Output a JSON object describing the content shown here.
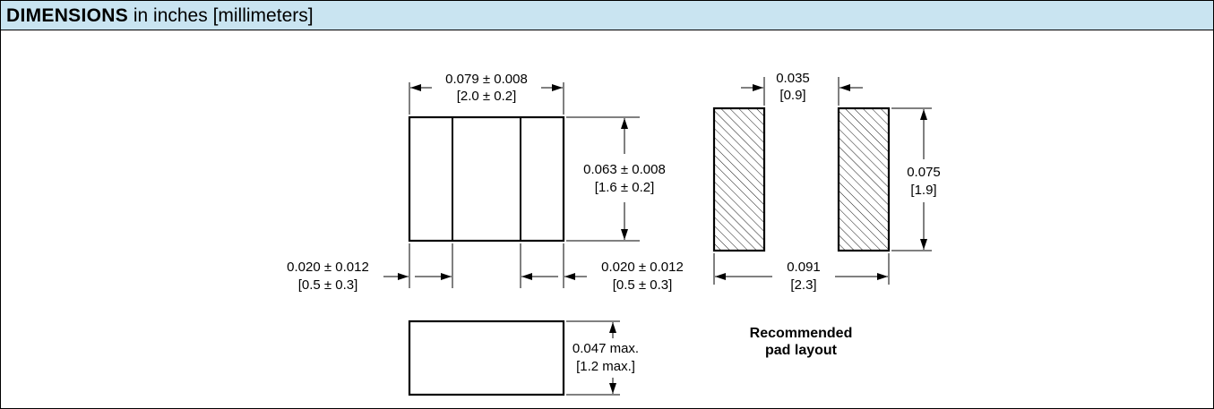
{
  "header": {
    "title_bold": "DIMENSIONS",
    "title_rest": " in inches [millimeters]"
  },
  "component": {
    "width": {
      "in": "0.079 ± 0.008",
      "mm": "[2.0 ± 0.2]"
    },
    "height": {
      "in": "0.063 ± 0.008",
      "mm": "[1.6 ± 0.2]"
    },
    "terminal_left": {
      "in": "0.020 ± 0.012",
      "mm": "[0.5 ± 0.3]"
    },
    "terminal_right": {
      "in": "0.020 ± 0.012",
      "mm": "[0.5 ± 0.3]"
    },
    "thickness": {
      "in": "0.047 max.",
      "mm": "[1.2 max.]"
    }
  },
  "pad_layout": {
    "pad_width": {
      "in": "0.035",
      "mm": "[0.9]"
    },
    "pad_height": {
      "in": "0.075",
      "mm": "[1.9]"
    },
    "overall": {
      "in": "0.091",
      "mm": "[2.3]"
    },
    "caption_line1": "Recommended",
    "caption_line2": "pad layout"
  }
}
